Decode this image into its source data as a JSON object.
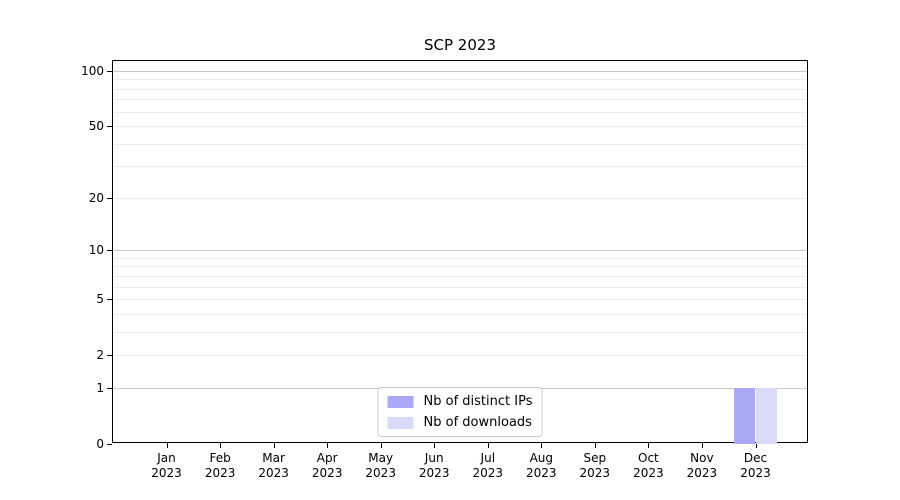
{
  "chart_data": {
    "type": "bar",
    "title": "SCP 2023",
    "categories": [
      "Jan 2023",
      "Feb 2023",
      "Mar 2023",
      "Apr 2023",
      "May 2023",
      "Jun 2023",
      "Jul 2023",
      "Aug 2023",
      "Sep 2023",
      "Oct 2023",
      "Nov 2023",
      "Dec 2023"
    ],
    "series": [
      {
        "name": "Nb of distinct IPs",
        "color": "#a9a9f7",
        "values": [
          0,
          0,
          0,
          0,
          0,
          0,
          0,
          0,
          0,
          0,
          0,
          1
        ]
      },
      {
        "name": "Nb of downloads",
        "color": "#d9d9fa",
        "values": [
          0,
          0,
          0,
          0,
          0,
          0,
          0,
          0,
          0,
          0,
          0,
          1
        ]
      }
    ],
    "xlabel": "",
    "ylabel": "",
    "yscale": "log1p",
    "ylim": [
      0,
      113
    ],
    "ytick_labels": [
      "0",
      "1",
      "2",
      "5",
      "10",
      "20",
      "50",
      "100"
    ],
    "ytick_values": [
      0,
      1,
      2,
      5,
      10,
      20,
      50,
      100
    ],
    "major_grid_values": [
      1,
      10,
      100
    ],
    "minor_grid_values": [
      2,
      3,
      4,
      5,
      6,
      7,
      8,
      9,
      20,
      30,
      40,
      50,
      60,
      70,
      80,
      90
    ],
    "grid": "horizontal",
    "legend_position": "lower center",
    "colors": {
      "major_grid": "#c9c9c9",
      "minor_grid": "#ededed",
      "axis": "#000000",
      "background": "#ffffff"
    }
  }
}
